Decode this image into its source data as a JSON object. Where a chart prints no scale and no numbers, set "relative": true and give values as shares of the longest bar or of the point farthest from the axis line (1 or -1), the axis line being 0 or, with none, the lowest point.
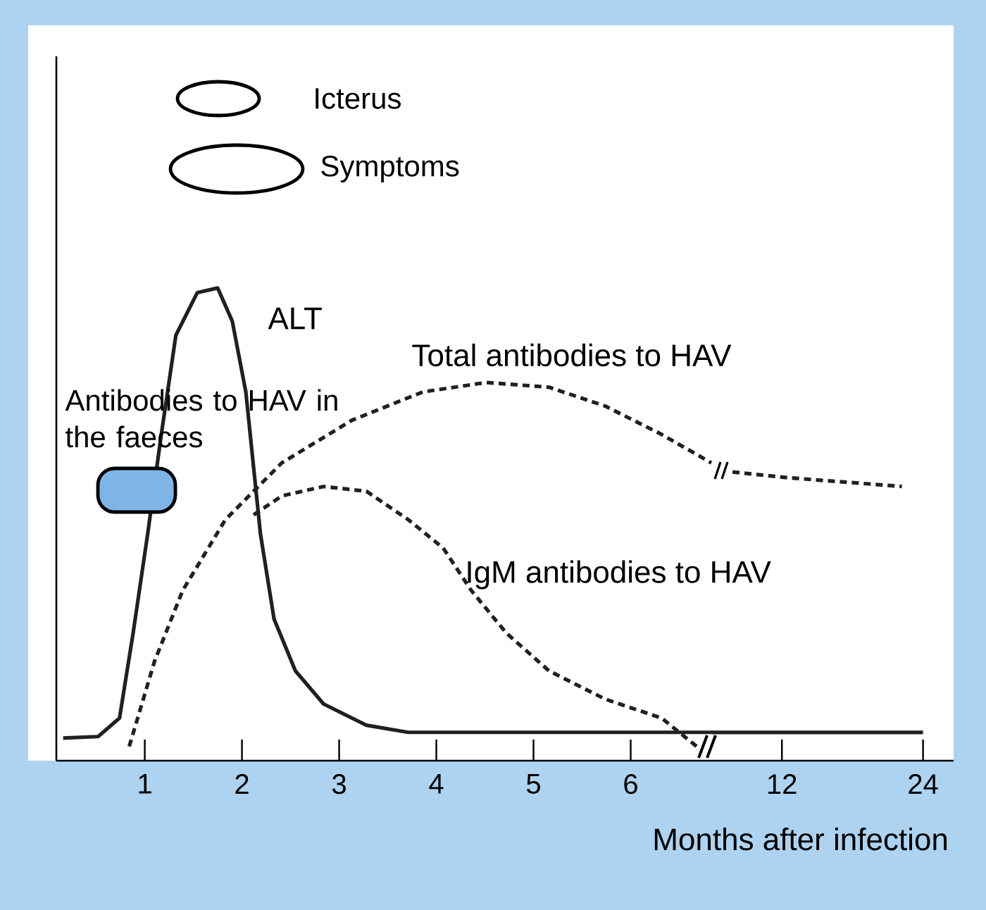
{
  "chart_data": [
    {
      "type": "line",
      "relative": true,
      "xlim": [
        0.09,
        6.83
      ],
      "xticks": [
        1,
        2,
        3,
        4,
        5,
        6
      ],
      "marker": "none",
      "annotations": [
        "Icterus",
        "Symptoms",
        "Antibodies to HAV in the faeces"
      ],
      "series": [
        {
          "name": "ALT",
          "color": "#231f20",
          "line_style": "solid",
          "x": [
            0.16,
            0.52,
            0.74,
            0.88,
            1.03,
            1.17,
            1.32,
            1.54,
            1.75,
            1.9,
            2.04,
            2.19,
            2.33,
            2.55,
            2.84,
            3.28,
            3.71,
            6.83
          ],
          "values": [
            0.048,
            0.051,
            0.09,
            0.27,
            0.48,
            0.69,
            0.9,
            0.99,
            1.0,
            0.93,
            0.78,
            0.48,
            0.3,
            0.19,
            0.12,
            0.075,
            0.06,
            0.06
          ]
        },
        {
          "name": "Total antibodies to HAV",
          "color": "#231f20",
          "line_style": "dashed",
          "x": [
            0.84,
            1.1,
            1.39,
            1.83,
            2.41,
            3.13,
            3.86,
            4.51,
            5.16,
            5.74,
            6.32,
            6.83
          ],
          "values": [
            0.03,
            0.21,
            0.36,
            0.51,
            0.63,
            0.72,
            0.78,
            0.8,
            0.79,
            0.75,
            0.69,
            0.63
          ]
        },
        {
          "name": "IgM antibodies to HAV",
          "color": "#231f20",
          "line_style": "dashed",
          "x": [
            2.12,
            2.41,
            2.84,
            3.28,
            3.71,
            4.07,
            4.36,
            4.72,
            5.16,
            5.74,
            6.32,
            6.68
          ],
          "values": [
            0.52,
            0.56,
            0.58,
            0.57,
            0.51,
            0.45,
            0.36,
            0.27,
            0.19,
            0.13,
            0.09,
            0.03
          ]
        }
      ]
    },
    {
      "type": "line",
      "relative": true,
      "xlim": [
        6.0,
        26.6
      ],
      "xticks": [
        12,
        24
      ],
      "marker": "none",
      "xlabel": "Months after infection",
      "series": [
        {
          "color": "#231f20",
          "line_style": "solid",
          "x": [
            6.0,
            24
          ],
          "values": [
            0.098,
            0.098
          ]
        },
        {
          "color": "#231f20",
          "line_style": "dashed",
          "x": [
            7.8,
            12.6,
            22.2
          ],
          "values": [
            1.0,
            0.98,
            0.95
          ]
        }
      ]
    }
  ]
}
